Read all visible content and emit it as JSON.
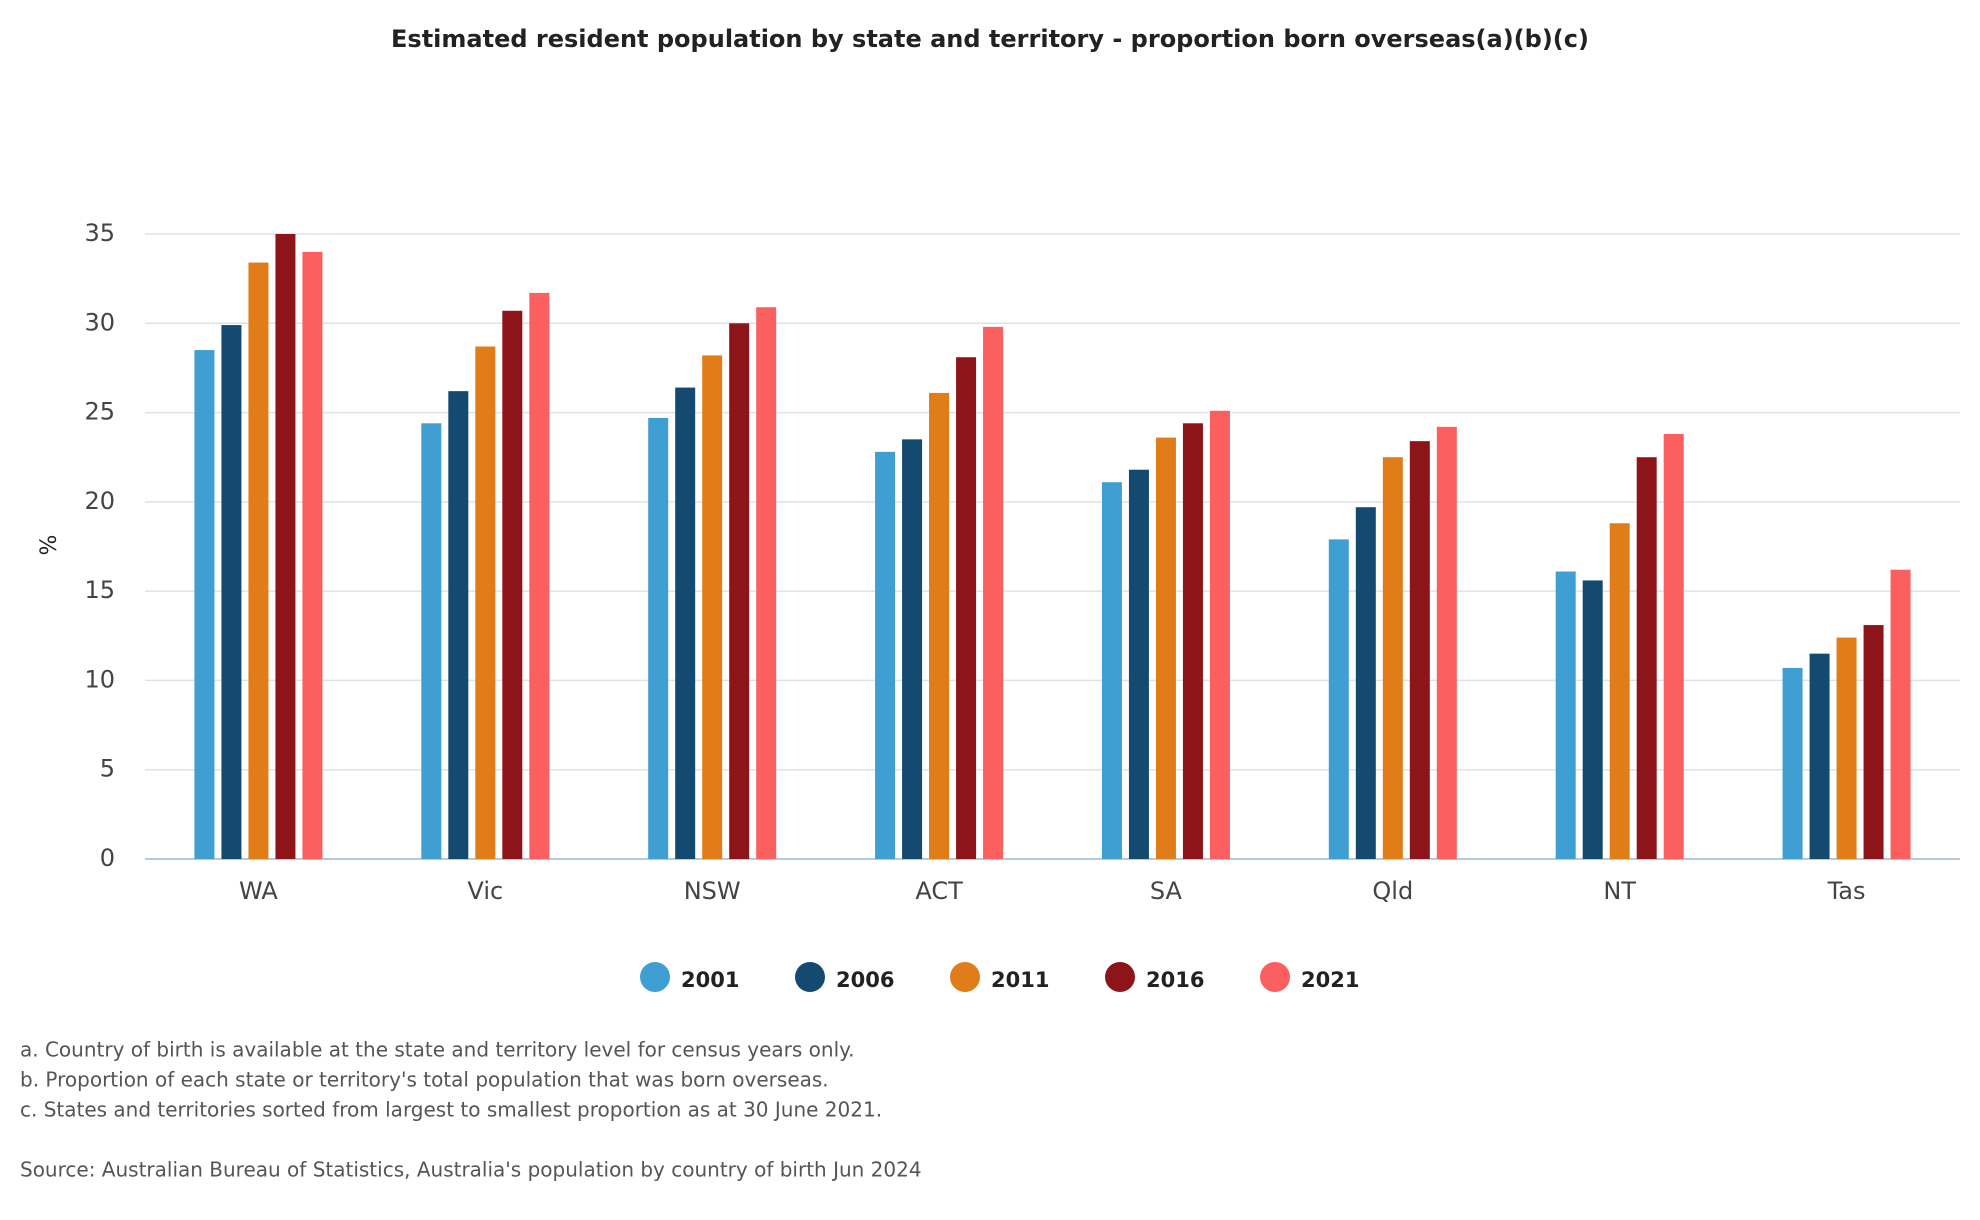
{
  "chart_data": {
    "type": "bar",
    "title": "Estimated resident population by state and territory - proportion born overseas(a)(b)(c)",
    "y_label": "%",
    "categories": [
      "WA",
      "Vic",
      "NSW",
      "ACT",
      "SA",
      "Qld",
      "NT",
      "Tas"
    ],
    "series": [
      {
        "name": "2001",
        "color": "#3f9fd3",
        "values": [
          28.5,
          24.4,
          24.7,
          22.8,
          21.1,
          17.9,
          16.1,
          10.7
        ]
      },
      {
        "name": "2006",
        "color": "#154a70",
        "values": [
          29.9,
          26.2,
          26.4,
          23.5,
          21.8,
          19.7,
          15.6,
          11.5
        ]
      },
      {
        "name": "2011",
        "color": "#e07d19",
        "values": [
          33.4,
          28.7,
          28.2,
          26.1,
          23.6,
          22.5,
          18.8,
          12.4
        ]
      },
      {
        "name": "2016",
        "color": "#8d1519",
        "values": [
          35.0,
          30.7,
          30.0,
          28.1,
          24.4,
          23.4,
          22.5,
          13.1
        ]
      },
      {
        "name": "2021",
        "color": "#fb5f5f",
        "values": [
          34.0,
          31.7,
          30.9,
          29.8,
          25.1,
          24.2,
          23.8,
          16.2
        ]
      }
    ],
    "ylim": [
      0,
      35
    ],
    "yticks": [
      0,
      5,
      10,
      15,
      20,
      25,
      30,
      35
    ],
    "grid": true,
    "notes": [
      "a. Country of birth is available at the state and territory level for census years only.",
      "b. Proportion of each state or territory's total population that was born overseas.",
      "c. States and territories sorted from largest to smallest proportion as at 30 June 2021."
    ],
    "source": "Source: Australian Bureau of Statistics, Australia's population by country of birth Jun 2024"
  }
}
